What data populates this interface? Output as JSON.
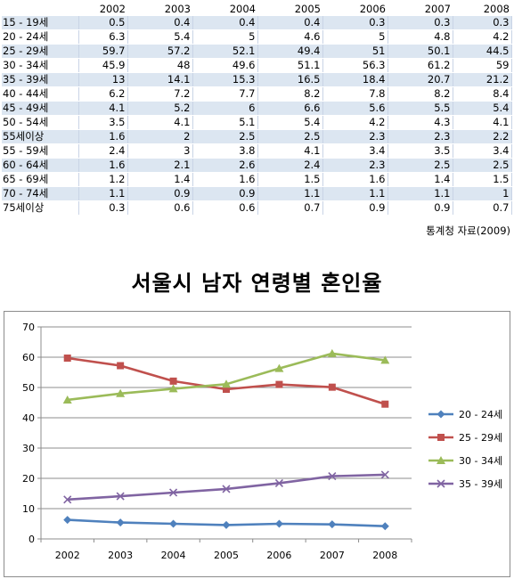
{
  "table": {
    "years": [
      "2002",
      "2003",
      "2004",
      "2005",
      "2006",
      "2007",
      "2008"
    ],
    "rows": [
      {
        "label": "15 - 19세",
        "values": [
          "0.5",
          "0.4",
          "0.4",
          "0.4",
          "0.3",
          "0.3",
          "0.3"
        ]
      },
      {
        "label": "20 - 24세",
        "values": [
          "6.3",
          "5.4",
          "5",
          "4.6",
          "5",
          "4.8",
          "4.2"
        ]
      },
      {
        "label": "25 - 29세",
        "values": [
          "59.7",
          "57.2",
          "52.1",
          "49.4",
          "51",
          "50.1",
          "44.5"
        ]
      },
      {
        "label": "30 - 34세",
        "values": [
          "45.9",
          "48",
          "49.6",
          "51.1",
          "56.3",
          "61.2",
          "59"
        ]
      },
      {
        "label": "35 - 39세",
        "values": [
          "13",
          "14.1",
          "15.3",
          "16.5",
          "18.4",
          "20.7",
          "21.2"
        ]
      },
      {
        "label": "40 - 44세",
        "values": [
          "6.2",
          "7.2",
          "7.7",
          "8.2",
          "7.8",
          "8.2",
          "8.4"
        ]
      },
      {
        "label": "45 - 49세",
        "values": [
          "4.1",
          "5.2",
          "6",
          "6.6",
          "5.6",
          "5.5",
          "5.4"
        ]
      },
      {
        "label": "50 - 54세",
        "values": [
          "3.5",
          "4.1",
          "5.1",
          "5.4",
          "4.2",
          "4.3",
          "4.1"
        ]
      },
      {
        "label": "55세이상",
        "values": [
          "1.6",
          "2",
          "2.5",
          "2.5",
          "2.3",
          "2.3",
          "2.2"
        ]
      },
      {
        "label": "55 - 59세",
        "values": [
          "2.4",
          "3",
          "3.8",
          "4.1",
          "3.4",
          "3.5",
          "3.4"
        ]
      },
      {
        "label": "60 - 64세",
        "values": [
          "1.6",
          "2.1",
          "2.6",
          "2.4",
          "2.3",
          "2.5",
          "2.5"
        ]
      },
      {
        "label": "65 - 69세",
        "values": [
          "1.2",
          "1.4",
          "1.6",
          "1.5",
          "1.6",
          "1.4",
          "1.5"
        ]
      },
      {
        "label": "70 - 74세",
        "values": [
          "1.1",
          "0.9",
          "0.9",
          "1.1",
          "1.1",
          "1.1",
          "1"
        ]
      },
      {
        "label": "75세이상",
        "values": [
          "0.3",
          "0.6",
          "0.6",
          "0.7",
          "0.9",
          "0.9",
          "0.7"
        ]
      }
    ]
  },
  "source_note": "통계청 자료(2009)",
  "chart_data": {
    "type": "line",
    "title": "서울시 남자 연령별 혼인율",
    "xlabel": "",
    "ylabel": "",
    "categories": [
      "2002",
      "2003",
      "2004",
      "2005",
      "2006",
      "2007",
      "2008"
    ],
    "ylim": [
      0,
      70
    ],
    "yticks": [
      0,
      10,
      20,
      30,
      40,
      50,
      60,
      70
    ],
    "grid": true,
    "legend_position": "right",
    "series": [
      {
        "name": "20 - 24세",
        "values": [
          6.3,
          5.4,
          5,
          4.6,
          5,
          4.8,
          4.2
        ],
        "color": "#4f81bd",
        "marker": "diamond"
      },
      {
        "name": "25 - 29세",
        "values": [
          59.7,
          57.2,
          52.1,
          49.4,
          51,
          50.1,
          44.5
        ],
        "color": "#c0504d",
        "marker": "square"
      },
      {
        "name": "30 - 34세",
        "values": [
          45.9,
          48,
          49.6,
          51.1,
          56.3,
          61.2,
          59
        ],
        "color": "#9bbb59",
        "marker": "triangle"
      },
      {
        "name": "35 - 39세",
        "values": [
          13,
          14.1,
          15.3,
          16.5,
          18.4,
          20.7,
          21.2
        ],
        "color": "#8064a2",
        "marker": "x"
      }
    ]
  }
}
